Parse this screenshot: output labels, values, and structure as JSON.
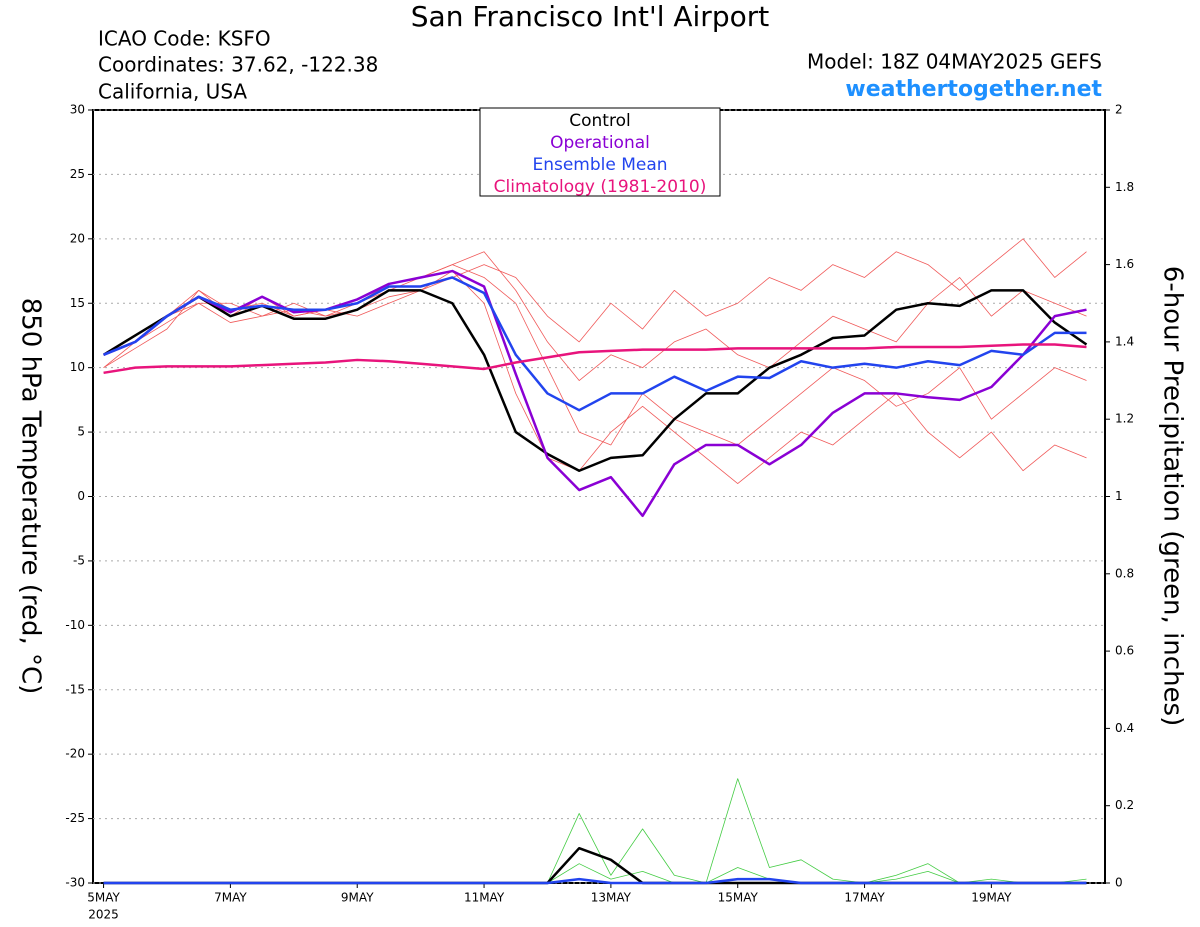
{
  "chart_data": {
    "type": "line",
    "title": "San Francisco Int'l Airport",
    "info": [
      "ICAO Code: KSFO",
      "Coordinates: 37.62, -122.38",
      "California, USA"
    ],
    "model": "Model: 18Z 04MAY2025 GEFS",
    "site": "weathertogether.net",
    "ylabel": "850 hPa Temperature (red, °C)",
    "y2label": "6-hour Precipitation (green, inches)",
    "year_label": "2025",
    "xlim": [
      -4,
      379
    ],
    "xticks": [
      {
        "value": 0,
        "label": "5MAY"
      },
      {
        "value": 48,
        "label": "7MAY"
      },
      {
        "value": 96,
        "label": "9MAY"
      },
      {
        "value": 144,
        "label": "11MAY"
      },
      {
        "value": 192,
        "label": "13MAY"
      },
      {
        "value": 240,
        "label": "15MAY"
      },
      {
        "value": 288,
        "label": "17MAY"
      },
      {
        "value": 336,
        "label": "19MAY"
      }
    ],
    "ylim": [
      -30,
      30
    ],
    "yticks": [
      -30,
      -25,
      -20,
      -15,
      -10,
      -5,
      0,
      5,
      10,
      15,
      20,
      25,
      30
    ],
    "y2lim": [
      0,
      2
    ],
    "y2ticks": [
      0,
      0.2,
      0.4,
      0.6,
      0.8,
      1,
      1.2,
      1.4,
      1.6,
      1.8,
      2
    ],
    "grid": true,
    "x": [
      0,
      12,
      24,
      36,
      48,
      60,
      72,
      84,
      96,
      108,
      120,
      132,
      144,
      156,
      168,
      180,
      192,
      204,
      216,
      228,
      240,
      252,
      264,
      276,
      288,
      300,
      312,
      324,
      336,
      348,
      360,
      372
    ],
    "series": [
      {
        "color": "#f05a5a",
        "width": 0.8,
        "values": [
          11,
          12.5,
          14,
          16,
          14.5,
          15,
          14,
          14.5,
          15,
          16,
          17,
          18,
          17,
          15,
          10,
          5,
          4,
          8,
          6,
          5,
          4,
          6,
          8,
          10,
          9,
          7,
          8,
          10,
          6,
          8,
          10,
          9
        ]
      },
      {
        "color": "#f05a5a",
        "width": 0.8,
        "values": [
          10,
          12,
          13.5,
          15,
          13.5,
          14,
          14.5,
          14,
          14.5,
          15.5,
          16,
          17,
          18,
          17,
          14,
          12,
          15,
          13,
          16,
          14,
          15,
          17,
          16,
          18,
          17,
          19,
          18,
          16,
          18,
          20,
          17,
          19
        ]
      },
      {
        "color": "#f05a5a",
        "width": 0.8,
        "values": [
          10,
          11.5,
          13,
          16,
          14,
          15.5,
          14,
          14.5,
          14,
          15,
          16,
          17.5,
          15,
          8,
          3,
          2,
          5,
          7,
          5,
          3,
          1,
          3,
          5,
          4,
          6,
          8,
          5,
          3,
          5,
          2,
          4,
          3
        ]
      },
      {
        "color": "#f05a5a",
        "width": 0.8,
        "values": [
          11,
          12,
          14,
          15,
          15,
          14,
          15,
          14,
          15,
          16.5,
          17,
          18,
          19,
          16,
          12,
          9,
          11,
          10,
          12,
          13,
          11,
          10,
          12,
          14,
          13,
          12,
          15,
          17,
          14,
          16,
          15,
          14
        ]
      },
      {
        "color": "#44cc44",
        "width": 0.8,
        "axis": "y2",
        "values": [
          0,
          0,
          0,
          0,
          0,
          0,
          0,
          0,
          0,
          0,
          0,
          0,
          0,
          0,
          0,
          0.18,
          0.02,
          0.14,
          0.02,
          0,
          0.27,
          0.04,
          0.06,
          0.01,
          0,
          0.01,
          0.03,
          0,
          0.01,
          0,
          0,
          0.01
        ]
      },
      {
        "color": "#44cc44",
        "width": 0.8,
        "axis": "y2",
        "values": [
          0,
          0,
          0,
          0,
          0,
          0,
          0,
          0,
          0,
          0,
          0,
          0,
          0,
          0,
          0,
          0.05,
          0.01,
          0.03,
          0,
          0,
          0.04,
          0.01,
          0,
          0,
          0,
          0.02,
          0.05,
          0,
          0,
          0,
          0,
          0
        ]
      },
      {
        "color": "#000000",
        "width": 2.5,
        "axis": "y2",
        "values": [
          0,
          0,
          0,
          0,
          0,
          0,
          0,
          0,
          0,
          0,
          0,
          0,
          0,
          0,
          0,
          0.09,
          0.06,
          0,
          0,
          0,
          0,
          0,
          0,
          0,
          0,
          0,
          0,
          0,
          0,
          0,
          0,
          0
        ]
      },
      {
        "color": "#2244ee",
        "width": 2.5,
        "axis": "y2",
        "values": [
          0,
          0,
          0,
          0,
          0,
          0,
          0,
          0,
          0,
          0,
          0,
          0,
          0,
          0,
          0,
          0.01,
          0,
          0,
          0,
          0,
          0.01,
          0.01,
          0,
          0,
          0,
          0,
          0,
          0,
          0,
          0,
          0,
          0
        ]
      },
      {
        "name": "Control",
        "color": "#000000",
        "width": 2.5,
        "values": [
          11,
          12.5,
          14,
          15.5,
          14,
          14.8,
          13.8,
          13.8,
          14.5,
          16,
          16,
          15,
          11,
          5,
          3.3,
          2,
          3,
          3.2,
          6,
          8,
          8,
          10,
          11,
          12.3,
          12.5,
          14.5,
          15,
          14.8,
          16,
          16,
          13.5,
          11.8
        ]
      },
      {
        "name": "Operational",
        "color": "#8a00d4",
        "width": 2.5,
        "values": [
          11,
          12,
          14,
          15.5,
          14.3,
          15.5,
          14.3,
          14.5,
          15.3,
          16.5,
          17,
          17.5,
          16.3,
          9.5,
          3,
          0.5,
          1.5,
          -1.5,
          2.5,
          4,
          4,
          2.5,
          4,
          6.5,
          8,
          8,
          7.7,
          7.5,
          8.5,
          11,
          14,
          14.5
        ]
      },
      {
        "name": "Ensemble Mean",
        "color": "#2244ee",
        "width": 2.5,
        "values": [
          11,
          12,
          14,
          15.5,
          14.5,
          14.8,
          14.5,
          14.5,
          15,
          16.3,
          16.3,
          17,
          15.8,
          11,
          8,
          6.7,
          8,
          8,
          9.3,
          8.2,
          9.3,
          9.2,
          10.5,
          10,
          10.3,
          10,
          10.5,
          10.2,
          11.3,
          11,
          12.7,
          12.7
        ]
      },
      {
        "name": "Climatology (1981-2010)",
        "color": "#e8147c",
        "width": 2.5,
        "values": [
          9.6,
          10,
          10.1,
          10.1,
          10.1,
          10.2,
          10.3,
          10.4,
          10.6,
          10.5,
          10.3,
          10.1,
          9.9,
          10.4,
          10.8,
          11.2,
          11.3,
          11.4,
          11.4,
          11.4,
          11.5,
          11.5,
          11.5,
          11.5,
          11.5,
          11.6,
          11.6,
          11.6,
          11.7,
          11.8,
          11.8,
          11.6
        ]
      }
    ]
  }
}
